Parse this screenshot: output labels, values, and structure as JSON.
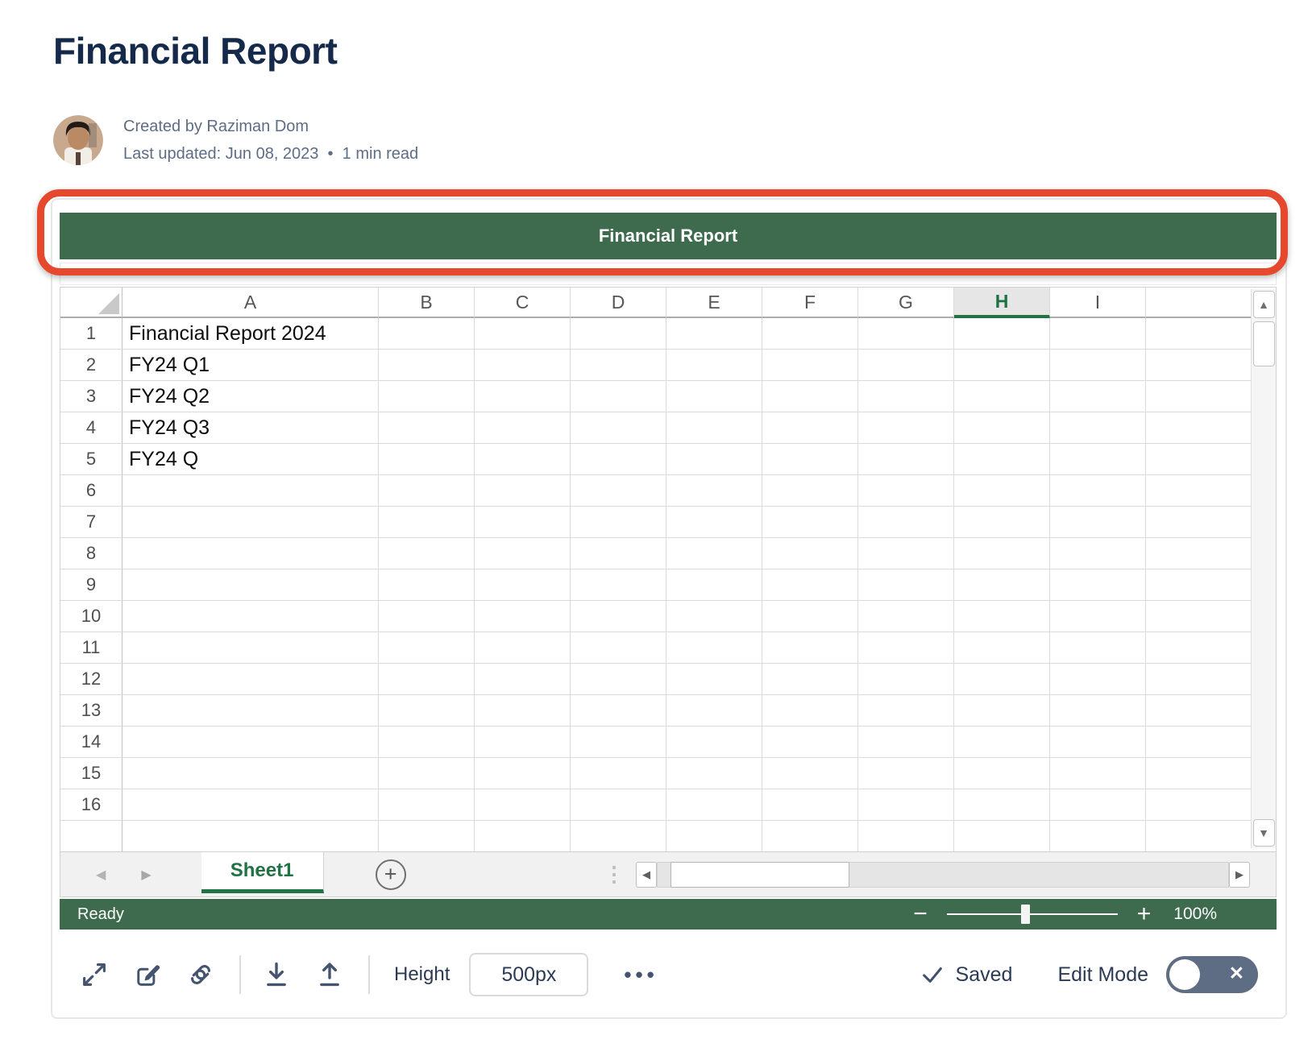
{
  "page": {
    "title": "Financial Report"
  },
  "byline": {
    "created_by": "Created by Raziman Dom",
    "last_updated": "Last updated: Jun 08, 2023",
    "separator": "•",
    "read_time": "1 min read"
  },
  "annotation": {
    "color": "#E5482D",
    "purpose": "highlights spreadsheet title bar"
  },
  "widget": {
    "title_bar": {
      "label": "Financial Report",
      "bg": "#3E6B4E"
    },
    "sheet": {
      "columns": [
        "A",
        "B",
        "C",
        "D",
        "E",
        "F",
        "G",
        "H",
        "I"
      ],
      "selected_column": "H",
      "visible_rows": 16,
      "cells": {
        "A1": "Financial Report 2024",
        "A2": "FY24 Q1",
        "A3": "FY24 Q2",
        "A4": "FY24 Q3",
        "A5": "FY24 Q"
      },
      "tabs": [
        {
          "label": "Sheet1",
          "active": true
        }
      ],
      "add_sheet_label": "+",
      "status": "Ready",
      "zoom_out_label": "−",
      "zoom_in_label": "+",
      "zoom_level": "100%"
    },
    "footer_toolbar": {
      "height_label": "Height",
      "height_value": "500px",
      "more_label": "•••",
      "saved_label": "Saved",
      "edit_mode_label": "Edit Mode",
      "edit_mode_on": false
    }
  },
  "colors": {
    "excel_green": "#3E6B4E",
    "accent_green": "#217346",
    "annotation_red": "#E5482D",
    "toolbar_icon": "#44546F",
    "title_text": "#15294B"
  }
}
